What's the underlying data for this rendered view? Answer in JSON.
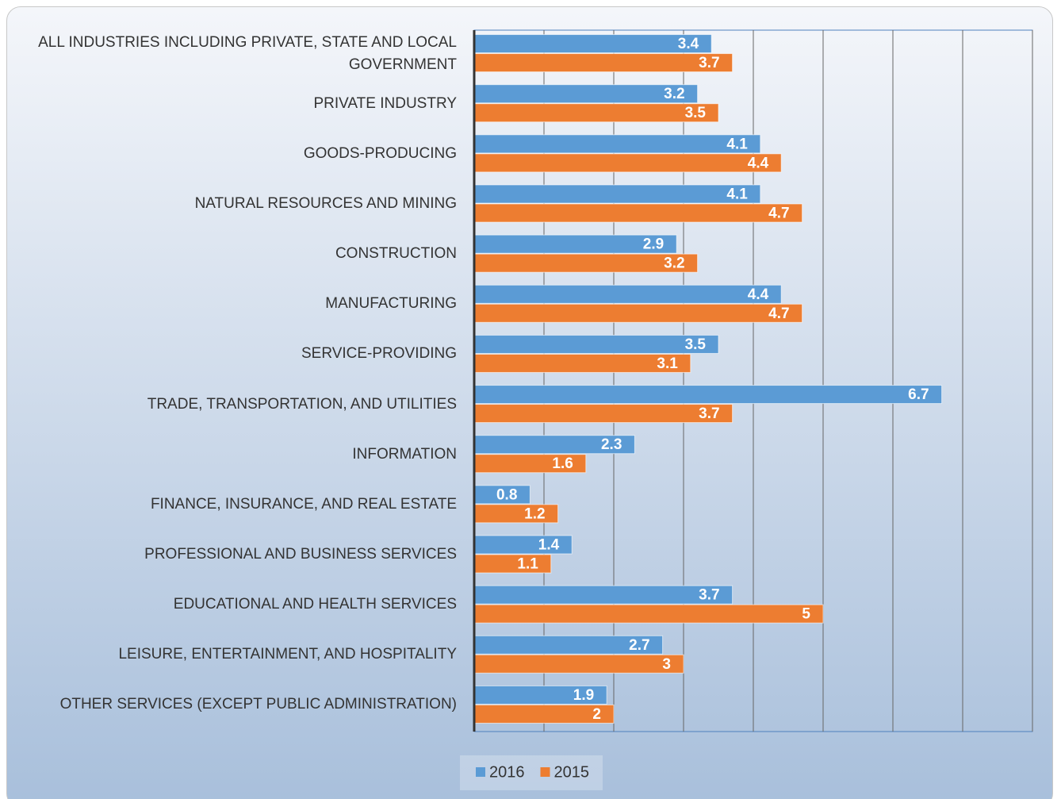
{
  "chart_data": {
    "type": "hbar",
    "categories": [
      "ALL INDUSTRIES INCLUDING PRIVATE, STATE AND LOCAL GOVERNMENT",
      "PRIVATE INDUSTRY",
      "GOODS-PRODUCING",
      "NATURAL RESOURCES AND MINING",
      "CONSTRUCTION",
      "MANUFACTURING",
      "SERVICE-PROVIDING",
      "TRADE, TRANSPORTATION, AND UTILITIES",
      "INFORMATION",
      "FINANCE, INSURANCE, AND REAL ESTATE",
      "PROFESSIONAL AND BUSINESS SERVICES",
      "EDUCATIONAL AND HEALTH SERVICES",
      "LEISURE, ENTERTAINMENT, AND HOSPITALITY",
      "OTHER SERVICES (EXCEPT PUBLIC ADMINISTRATION)"
    ],
    "series": [
      {
        "name": "2016",
        "color": "#5b9bd5",
        "values": [
          3.4,
          3.2,
          4.1,
          4.1,
          2.9,
          4.4,
          3.5,
          6.7,
          2.3,
          0.8,
          1.4,
          3.7,
          2.7,
          1.9
        ]
      },
      {
        "name": "2015",
        "color": "#ed7d31",
        "values": [
          3.7,
          3.5,
          4.4,
          4.7,
          3.2,
          4.7,
          3.1,
          3.7,
          1.6,
          1.2,
          1.1,
          5,
          3,
          2
        ]
      }
    ],
    "xlim": [
      0,
      8
    ],
    "xticks": [
      0,
      1,
      2,
      3,
      4,
      5,
      6,
      7,
      8
    ],
    "grid": true,
    "legend": "bottom"
  }
}
